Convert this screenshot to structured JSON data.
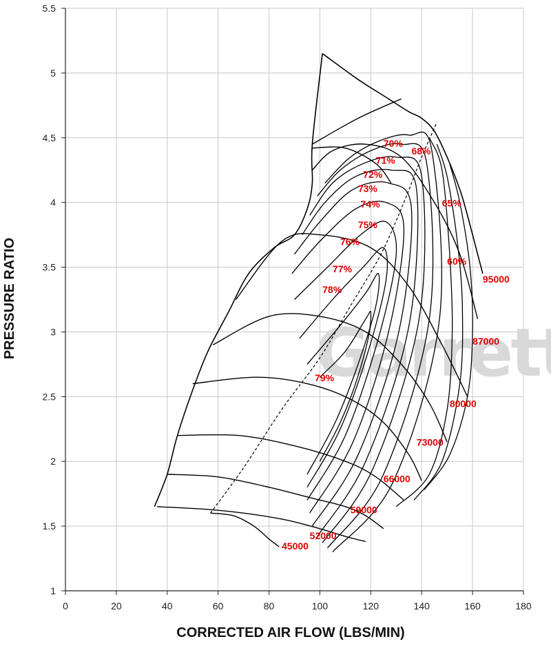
{
  "chart_data": {
    "type": "line",
    "xlabel": "CORRECTED AIR FLOW (LBS/MIN)",
    "ylabel": "PRESSURE RATIO",
    "xlim": [
      0,
      180
    ],
    "ylim": [
      1,
      5.5
    ],
    "x_ticks": [
      "0",
      "20",
      "40",
      "60",
      "80",
      "100",
      "120",
      "140",
      "160",
      "180"
    ],
    "y_ticks": [
      "1",
      "1.5",
      "2",
      "2.5",
      "3",
      "3.5",
      "4",
      "4.5",
      "5",
      "5.5"
    ],
    "grid": true,
    "watermark": "Garrett",
    "label_color": "#e00000",
    "line_color": "#000000",
    "surge_line": [
      [
        35,
        1.65
      ],
      [
        40,
        1.9
      ],
      [
        44,
        2.2
      ],
      [
        50,
        2.55
      ],
      [
        56,
        2.85
      ],
      [
        64,
        3.15
      ],
      [
        72,
        3.45
      ],
      [
        82,
        3.65
      ],
      [
        90,
        3.75
      ],
      [
        95,
        3.95
      ],
      [
        97,
        4.15
      ],
      [
        97,
        4.45
      ],
      [
        101,
        5.15
      ]
    ],
    "choke_line": [
      [
        101,
        5.15
      ],
      [
        115,
        4.95
      ],
      [
        127,
        4.8
      ],
      [
        135,
        4.7
      ],
      [
        140,
        4.65
      ],
      [
        145,
        4.55
      ],
      [
        150,
        4.35
      ],
      [
        155,
        4.1
      ],
      [
        158,
        3.9
      ],
      [
        162,
        3.6
      ],
      [
        164,
        3.45
      ]
    ],
    "speed_lines": [
      {
        "label": "45000",
        "points": [
          [
            57,
            1.6
          ],
          [
            66,
            1.58
          ],
          [
            74,
            1.5
          ],
          [
            80,
            1.4
          ],
          [
            84,
            1.34
          ]
        ]
      },
      {
        "label": "52000",
        "points": [
          [
            36,
            1.65
          ],
          [
            55,
            1.63
          ],
          [
            70,
            1.6
          ],
          [
            86,
            1.55
          ],
          [
            100,
            1.48
          ],
          [
            110,
            1.42
          ],
          [
            118,
            1.38
          ]
        ]
      },
      {
        "label": "59000",
        "points": [
          [
            40,
            1.9
          ],
          [
            60,
            1.88
          ],
          [
            80,
            1.8
          ],
          [
            96,
            1.72
          ],
          [
            110,
            1.65
          ],
          [
            118,
            1.58
          ],
          [
            125,
            1.48
          ]
        ]
      },
      {
        "label": "66000",
        "points": [
          [
            44,
            2.2
          ],
          [
            68,
            2.2
          ],
          [
            90,
            2.12
          ],
          [
            110,
            2.0
          ],
          [
            122,
            1.88
          ],
          [
            133,
            1.7
          ]
        ]
      },
      {
        "label": "73000",
        "points": [
          [
            50,
            2.6
          ],
          [
            75,
            2.65
          ],
          [
            95,
            2.6
          ],
          [
            112,
            2.48
          ],
          [
            125,
            2.3
          ],
          [
            135,
            2.05
          ],
          [
            140,
            1.85
          ]
        ]
      },
      {
        "label": "80000",
        "points": [
          [
            58,
            2.9
          ],
          [
            80,
            3.12
          ],
          [
            100,
            3.12
          ],
          [
            118,
            3.0
          ],
          [
            132,
            2.75
          ],
          [
            143,
            2.45
          ],
          [
            150,
            2.15
          ]
        ]
      },
      {
        "label": "87000",
        "points": [
          [
            67,
            3.25
          ],
          [
            85,
            3.7
          ],
          [
            100,
            3.75
          ],
          [
            120,
            3.65
          ],
          [
            135,
            3.35
          ],
          [
            148,
            2.9
          ],
          [
            158,
            2.5
          ]
        ]
      },
      {
        "label": "95000",
        "points": [
          [
            97,
            4.25
          ],
          [
            105,
            4.4
          ],
          [
            118,
            4.45
          ],
          [
            132,
            4.35
          ],
          [
            145,
            4.0
          ],
          [
            155,
            3.6
          ],
          [
            162,
            3.1
          ]
        ]
      }
    ],
    "top_speed_lines": [
      {
        "points": [
          [
            97,
            4.45
          ],
          [
            115,
            4.65
          ],
          [
            132,
            4.8
          ]
        ]
      },
      {
        "points": [
          [
            97,
            4.42
          ],
          [
            110,
            4.42
          ],
          [
            122,
            4.3
          ],
          [
            128,
            4.15
          ]
        ]
      }
    ],
    "efficiency_islands": [
      {
        "label": "79%",
        "points": [
          [
            100,
            2.65
          ],
          [
            110,
            2.85
          ],
          [
            118,
            3.1
          ],
          [
            120,
            3.15
          ],
          [
            119,
            2.95
          ],
          [
            114,
            2.6
          ],
          [
            108,
            2.3
          ],
          [
            100,
            2.0
          ]
        ]
      },
      {
        "label": "78%",
        "points": [
          [
            95,
            2.75
          ],
          [
            108,
            3.05
          ],
          [
            118,
            3.3
          ],
          [
            123,
            3.45
          ],
          [
            122,
            3.2
          ],
          [
            115,
            2.75
          ],
          [
            106,
            2.3
          ],
          [
            95,
            1.9
          ]
        ]
      },
      {
        "label": "77%",
        "points": [
          [
            92,
            2.95
          ],
          [
            105,
            3.25
          ],
          [
            117,
            3.5
          ],
          [
            125,
            3.65
          ],
          [
            126,
            3.4
          ],
          [
            119,
            2.85
          ],
          [
            108,
            2.25
          ],
          [
            95,
            1.8
          ]
        ]
      },
      {
        "label": "76%",
        "points": [
          [
            90,
            3.25
          ],
          [
            103,
            3.5
          ],
          [
            116,
            3.75
          ],
          [
            126,
            3.85
          ],
          [
            130,
            3.6
          ],
          [
            123,
            2.95
          ],
          [
            110,
            2.2
          ],
          [
            95,
            1.7
          ]
        ]
      },
      {
        "label": "75%",
        "points": [
          [
            89,
            3.45
          ],
          [
            100,
            3.7
          ],
          [
            114,
            3.95
          ],
          [
            126,
            4.0
          ],
          [
            133,
            3.8
          ],
          [
            127,
            3.0
          ],
          [
            113,
            2.15
          ],
          [
            96,
            1.6
          ]
        ]
      },
      {
        "label": "74%",
        "points": [
          [
            90,
            3.6
          ],
          [
            100,
            3.85
          ],
          [
            113,
            4.1
          ],
          [
            127,
            4.15
          ],
          [
            136,
            3.95
          ],
          [
            131,
            3.0
          ],
          [
            115,
            2.05
          ],
          [
            97,
            1.5
          ]
        ]
      },
      {
        "label": "73%",
        "points": [
          [
            93,
            3.75
          ],
          [
            102,
            4.0
          ],
          [
            114,
            4.2
          ],
          [
            128,
            4.25
          ],
          [
            138,
            4.1
          ],
          [
            135,
            3.05
          ],
          [
            118,
            2.0
          ],
          [
            99,
            1.42
          ]
        ]
      },
      {
        "label": "72%",
        "points": [
          [
            96,
            3.9
          ],
          [
            105,
            4.15
          ],
          [
            117,
            4.3
          ],
          [
            130,
            4.35
          ],
          [
            140,
            4.2
          ],
          [
            139,
            3.1
          ],
          [
            121,
            1.95
          ],
          [
            101,
            1.37
          ]
        ]
      },
      {
        "label": "71%",
        "points": [
          [
            99,
            4.05
          ],
          [
            108,
            4.25
          ],
          [
            120,
            4.4
          ],
          [
            132,
            4.45
          ],
          [
            142,
            4.3
          ],
          [
            143,
            3.1
          ],
          [
            125,
            1.9
          ],
          [
            103,
            1.33
          ]
        ]
      },
      {
        "label": "70%",
        "points": [
          [
            102,
            4.15
          ],
          [
            112,
            4.35
          ],
          [
            124,
            4.48
          ],
          [
            135,
            4.52
          ],
          [
            144,
            4.4
          ],
          [
            147,
            3.1
          ],
          [
            129,
            1.85
          ],
          [
            105,
            1.3
          ]
        ]
      }
    ],
    "outer_efficiency_lines": [
      {
        "label": "68%",
        "points": [
          [
            143,
            4.5
          ],
          [
            148,
            4.25
          ],
          [
            151,
            3.6
          ],
          [
            152,
            3.0
          ],
          [
            150,
            2.4
          ],
          [
            143,
            1.9
          ],
          [
            130,
            1.65
          ]
        ]
      },
      {
        "label": "65%",
        "points": [
          [
            146,
            4.45
          ],
          [
            150,
            4.2
          ],
          [
            154,
            3.7
          ],
          [
            156,
            3.2
          ],
          [
            155,
            2.6
          ],
          [
            148,
            2.0
          ],
          [
            137,
            1.7
          ]
        ]
      },
      {
        "label": "60%",
        "points": [
          [
            151,
            4.3
          ],
          [
            155,
            4.0
          ],
          [
            159,
            3.5
          ],
          [
            160,
            3.0
          ],
          [
            158,
            2.5
          ],
          [
            151,
            2.05
          ],
          [
            141,
            1.78
          ]
        ]
      }
    ],
    "max_efficiency_line": [
      [
        57,
        1.6
      ],
      [
        70,
        1.95
      ],
      [
        85,
        2.4
      ],
      [
        100,
        2.8
      ],
      [
        112,
        3.2
      ],
      [
        124,
        3.6
      ],
      [
        133,
        4.0
      ],
      [
        140,
        4.35
      ],
      [
        146,
        4.62
      ]
    ],
    "speed_label_positions": {
      "45000": [
        85,
        1.32
      ],
      "52000": [
        96,
        1.4
      ],
      "59000": [
        112,
        1.6
      ],
      "66000": [
        125,
        1.84
      ],
      "73000": [
        138,
        2.12
      ],
      "80000": [
        151,
        2.42
      ],
      "87000": [
        160,
        2.9
      ],
      "95000": [
        164,
        3.38
      ]
    },
    "efficiency_label_positions": {
      "79%": [
        98,
        2.62
      ],
      "78%": [
        101,
        3.3
      ],
      "77%": [
        105,
        3.46
      ],
      "76%": [
        108,
        3.67
      ],
      "75%": [
        115,
        3.8
      ],
      "74%": [
        116,
        3.96
      ],
      "73%": [
        115,
        4.08
      ],
      "72%": [
        117,
        4.19
      ],
      "71%": [
        122,
        4.3
      ],
      "70%": [
        125,
        4.43
      ],
      "68%": [
        136,
        4.37
      ],
      "65%": [
        148,
        3.97
      ],
      "60%": [
        150,
        3.52
      ]
    }
  }
}
